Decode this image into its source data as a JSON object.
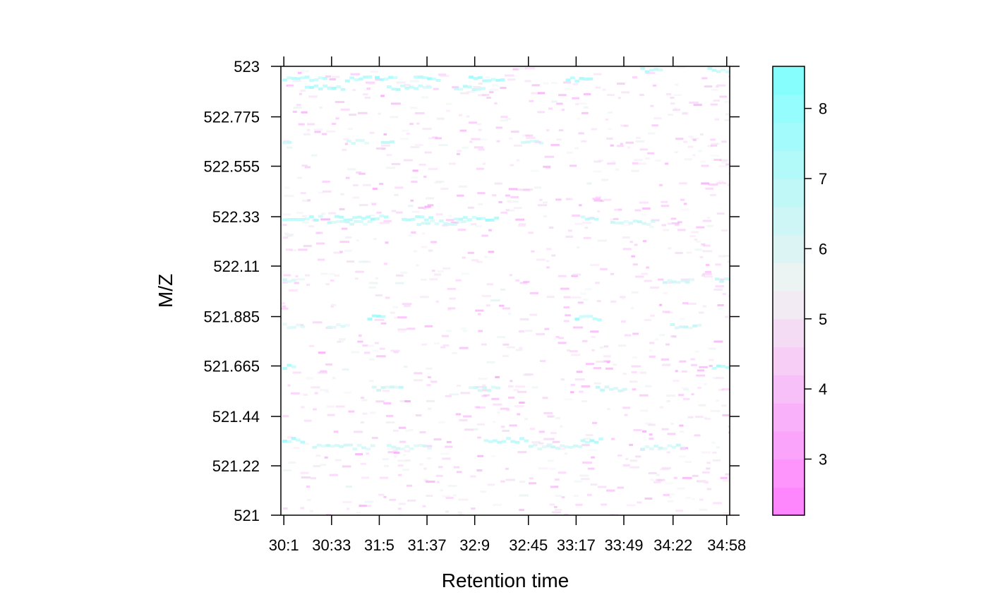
{
  "chart_data": {
    "type": "heatmap",
    "title": "",
    "xlabel": "Retention time",
    "ylabel": "M/Z",
    "x_ticks": [
      "30:1",
      "30:33",
      "31:5",
      "31:37",
      "32:9",
      "32:45",
      "33:17",
      "33:49",
      "34:22",
      "34:58"
    ],
    "x_tick_seconds": [
      1801,
      1833,
      1865,
      1897,
      1929,
      1965,
      1997,
      2029,
      2062,
      2098
    ],
    "xlim_seconds": [
      1799,
      2100
    ],
    "y_ticks": [
      "521",
      "521.22",
      "521.44",
      "521.665",
      "521.885",
      "522.11",
      "522.33",
      "522.555",
      "522.775",
      "523"
    ],
    "y_tick_values": [
      521,
      521.22,
      521.44,
      521.665,
      521.885,
      522.11,
      522.33,
      522.555,
      522.775,
      523
    ],
    "ylim": [
      521,
      523
    ],
    "colorbar": {
      "ticks": [
        "3",
        "4",
        "5",
        "6",
        "7",
        "8"
      ],
      "tick_values": [
        3,
        4,
        5,
        6,
        7,
        8
      ],
      "range": [
        2.2,
        8.6
      ],
      "low_color": "#ff80ff",
      "mid_color": "#f2f2f2",
      "high_color": "#80ffff"
    },
    "bands": [
      {
        "mz": 522.95,
        "intensity": 7.6,
        "segments": [
          [
            1800,
            1830
          ],
          [
            1842,
            1858
          ],
          [
            1862,
            1876
          ],
          [
            1888,
            1905
          ],
          [
            1925,
            1948
          ],
          [
            1990,
            2008
          ]
        ]
      },
      {
        "mz": 522.91,
        "intensity": 7.2,
        "segments": [
          [
            1815,
            1840
          ],
          [
            1870,
            1900
          ],
          [
            1915,
            1935
          ]
        ]
      },
      {
        "mz": 522.99,
        "intensity": 6.8,
        "segments": [
          [
            2085,
            2100
          ],
          [
            2040,
            2055
          ]
        ]
      },
      {
        "mz": 522.33,
        "intensity": 7.3,
        "segments": [
          [
            1800,
            1825
          ],
          [
            1835,
            1870
          ],
          [
            1880,
            1900
          ],
          [
            1915,
            1945
          ],
          [
            2000,
            2012
          ]
        ]
      },
      {
        "mz": 522.31,
        "intensity": 6.5,
        "segments": [
          [
            1830,
            1860
          ],
          [
            1890,
            1925
          ],
          [
            2020,
            2050
          ]
        ]
      },
      {
        "mz": 521.885,
        "intensity": 7.5,
        "segments": [
          [
            1857,
            1868
          ],
          [
            1996,
            2014
          ]
        ]
      },
      {
        "mz": 521.85,
        "intensity": 6.3,
        "segments": [
          [
            1800,
            1815
          ],
          [
            1830,
            1845
          ],
          [
            2060,
            2080
          ]
        ]
      },
      {
        "mz": 522.05,
        "intensity": 6.6,
        "segments": [
          [
            1800,
            1808
          ],
          [
            2055,
            2075
          ],
          [
            2090,
            2100
          ]
        ]
      },
      {
        "mz": 521.665,
        "intensity": 7.4,
        "segments": [
          [
            1800,
            1808
          ],
          [
            2088,
            2098
          ]
        ]
      },
      {
        "mz": 521.57,
        "intensity": 6.4,
        "segments": [
          [
            1860,
            1880
          ],
          [
            1925,
            1945
          ],
          [
            2010,
            2030
          ]
        ]
      },
      {
        "mz": 521.34,
        "intensity": 7.3,
        "segments": [
          [
            1800,
            1815
          ],
          [
            1935,
            1965
          ],
          [
            2000,
            2015
          ]
        ]
      },
      {
        "mz": 521.31,
        "intensity": 6.4,
        "segments": [
          [
            1820,
            1860
          ],
          [
            1870,
            1900
          ],
          [
            1965,
            2000
          ],
          [
            2040,
            2070
          ]
        ]
      },
      {
        "mz": 522.67,
        "intensity": 6.5,
        "segments": [
          [
            1800,
            1806
          ],
          [
            1843,
            1858
          ],
          [
            1866,
            1874
          ],
          [
            1960,
            1975
          ]
        ]
      }
    ]
  }
}
